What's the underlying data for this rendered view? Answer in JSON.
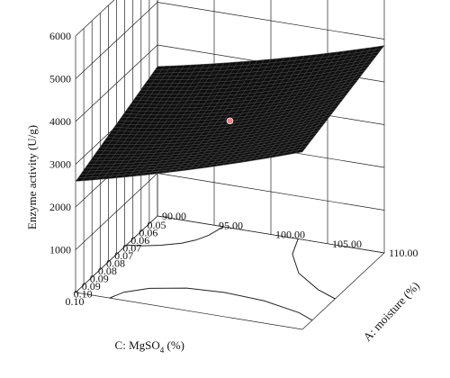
{
  "chart_data": {
    "type": "surface",
    "ylabel": "Enzyme activity (U/g)",
    "c_label_main": "C: MgSO",
    "c_label_sub": "4",
    "c_label_unit": " (%)",
    "xlabel": "A: moisture (%)",
    "z_ticks": [
      "1000",
      "2000",
      "3000",
      "4000",
      "5000",
      "6000"
    ],
    "c_ticks": [
      "0.10",
      "0.10",
      "0.09",
      "0.09",
      "0.08",
      "0.08",
      "0.07",
      "0.07",
      "0.06",
      "0.06",
      "0.05"
    ],
    "a_ticks": [
      "90.00",
      "95.00",
      "100.00",
      "105.00",
      "110.00"
    ],
    "zlim": [
      0,
      6000
    ],
    "clim": [
      0.05,
      0.1
    ],
    "alim": [
      90,
      110
    ],
    "surface_corners": [
      {
        "moisture": 90,
        "mgso4": 0.1,
        "activity": 2600
      },
      {
        "moisture": 90,
        "mgso4": 0.05,
        "activity": 3500
      },
      {
        "moisture": 110,
        "mgso4": 0.05,
        "activity": 4850
      },
      {
        "moisture": 110,
        "mgso4": 0.1,
        "activity": 4150
      }
    ],
    "optimum_point": {
      "moisture": 100,
      "mgso4": 0.075,
      "activity": 3100
    }
  },
  "colors": {
    "surface": "#0f0f0f",
    "grid": "#222222",
    "marker": "#e8858f"
  }
}
